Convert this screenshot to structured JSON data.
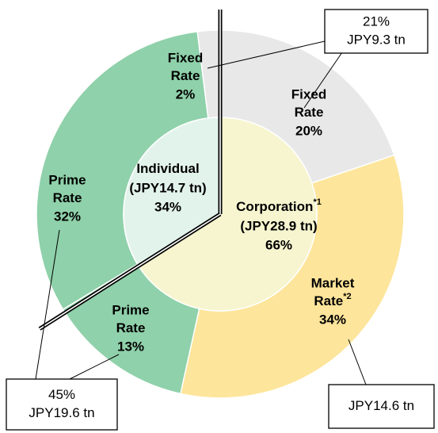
{
  "chart_data": {
    "type": "donut",
    "inner": {
      "categories": [
        "Corporation",
        "Individual"
      ],
      "values": [
        66,
        34
      ],
      "value_labels": [
        "66%",
        "34%"
      ],
      "amounts": [
        "(JPY28.9 tn)",
        "(JPY14.7 tn)"
      ],
      "markers": [
        "*1",
        null
      ],
      "colors": [
        "#f6f5cf",
        "#e2f3ec"
      ]
    },
    "outer": {
      "names": [
        [
          "Fixed",
          "Rate"
        ],
        [
          "Market",
          "Rate"
        ],
        [
          "Prime",
          "Rate"
        ],
        [
          "Prime",
          "Rate"
        ],
        [
          "Fixed",
          "Rate"
        ]
      ],
      "values": [
        20,
        34,
        13,
        32,
        2
      ],
      "value_labels": [
        "20%",
        "34%",
        "13%",
        "32%",
        "2%"
      ],
      "markers": [
        null,
        "*2",
        null,
        null,
        null
      ],
      "colors": [
        "#e8e8e8",
        "#fde59b",
        "#8fd1aa",
        "#8fd1aa",
        "#e8e8e8"
      ]
    },
    "callouts": [
      {
        "texts": [
          "21%",
          "JPY9.3 tn"
        ]
      },
      {
        "texts": [
          "45%",
          "JPY19.6 tn"
        ]
      },
      {
        "texts": [
          "JPY14.6 tn"
        ]
      }
    ]
  }
}
